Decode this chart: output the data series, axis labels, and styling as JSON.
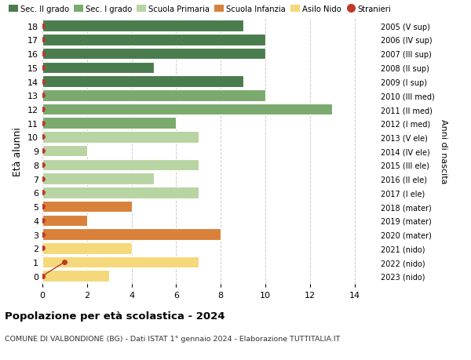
{
  "ages": [
    18,
    17,
    16,
    15,
    14,
    13,
    12,
    11,
    10,
    9,
    8,
    7,
    6,
    5,
    4,
    3,
    2,
    1,
    0
  ],
  "right_labels": [
    "2005 (V sup)",
    "2006 (IV sup)",
    "2007 (III sup)",
    "2008 (II sup)",
    "2009 (I sup)",
    "2010 (III med)",
    "2011 (II med)",
    "2012 (I med)",
    "2013 (V ele)",
    "2014 (IV ele)",
    "2015 (III ele)",
    "2016 (II ele)",
    "2017 (I ele)",
    "2018 (mater)",
    "2019 (mater)",
    "2020 (mater)",
    "2021 (nido)",
    "2022 (nido)",
    "2023 (nido)"
  ],
  "values": [
    9,
    10,
    10,
    5,
    9,
    10,
    13,
    6,
    7,
    2,
    7,
    5,
    7,
    4,
    2,
    8,
    4,
    7,
    3
  ],
  "bar_colors": [
    "#4a7c4e",
    "#4a7c4e",
    "#4a7c4e",
    "#4a7c4e",
    "#4a7c4e",
    "#7aaa6e",
    "#7aaa6e",
    "#7aaa6e",
    "#b8d4a2",
    "#b8d4a2",
    "#b8d4a2",
    "#b8d4a2",
    "#b8d4a2",
    "#d9813a",
    "#d9813a",
    "#d9813a",
    "#f5d87a",
    "#f5d87a",
    "#f5d87a"
  ],
  "stranieri_color": "#c0392b",
  "stranieri_line_ages": [
    0,
    1
  ],
  "stranieri_line_x": [
    0,
    1
  ],
  "stranieri_dot_ages": [
    18,
    17,
    16,
    15,
    14,
    13,
    12,
    11,
    10,
    9,
    8,
    7,
    6,
    5,
    4,
    3,
    2,
    0
  ],
  "stranieri_dot_x": [
    0,
    0,
    0,
    0,
    0,
    0,
    0,
    0,
    0,
    0,
    0,
    0,
    0,
    0,
    0,
    0,
    0,
    0
  ],
  "legend_labels": [
    "Sec. II grado",
    "Sec. I grado",
    "Scuola Primaria",
    "Scuola Infanzia",
    "Asilo Nido",
    "Stranieri"
  ],
  "legend_colors": [
    "#4a7c4e",
    "#7aaa6e",
    "#b8d4a2",
    "#d9813a",
    "#f5d87a",
    "#c0392b"
  ],
  "title": "Popolazione per età scolastica - 2024",
  "subtitle": "COMUNE DI VALBONDIONE (BG) - Dati ISTAT 1° gennaio 2024 - Elaborazione TUTTITALIA.IT",
  "ylabel_left": "Età alunni",
  "ylabel_right": "Anni di nascita",
  "xlim": [
    0,
    15
  ],
  "xticks": [
    0,
    2,
    4,
    6,
    8,
    10,
    12,
    14
  ],
  "ylim_low": -0.6,
  "ylim_high": 18.6,
  "background_color": "#ffffff",
  "grid_color": "#cccccc",
  "bar_height": 0.82
}
